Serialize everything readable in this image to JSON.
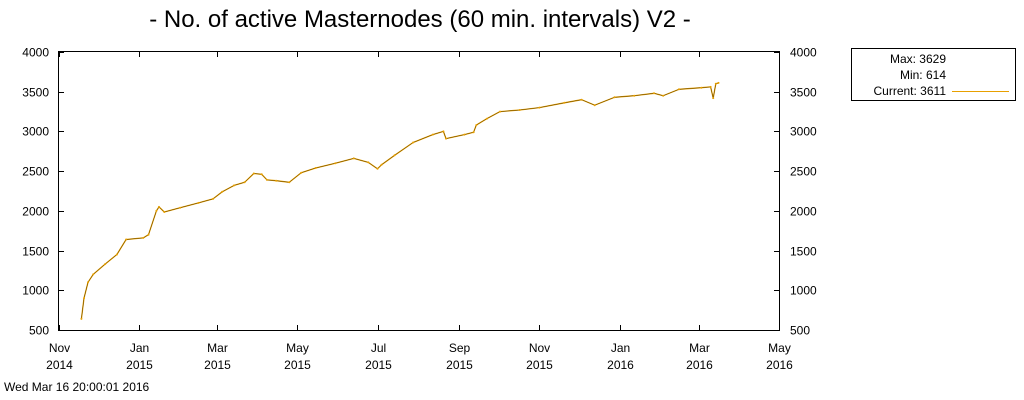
{
  "chart_data": {
    "type": "line",
    "title": "- No. of active Masternodes (60 min. intervals) V2 -",
    "xlabel": "",
    "ylabel": "",
    "ylim": [
      500,
      4000
    ],
    "xlim": [
      "2014-11-01",
      "2016-05-01"
    ],
    "y_ticks": [
      "500",
      "1000",
      "1500",
      "2000",
      "2500",
      "3000",
      "3500",
      "4000"
    ],
    "x_ticks": [
      {
        "date": "2014-11-01",
        "month": "Nov",
        "year": "2014"
      },
      {
        "date": "2015-01-01",
        "month": "Jan",
        "year": "2015"
      },
      {
        "date": "2015-03-01",
        "month": "Mar",
        "year": "2015"
      },
      {
        "date": "2015-05-01",
        "month": "May",
        "year": "2015"
      },
      {
        "date": "2015-07-01",
        "month": "Jul",
        "year": "2015"
      },
      {
        "date": "2015-09-01",
        "month": "Sep",
        "year": "2015"
      },
      {
        "date": "2015-11-01",
        "month": "Nov",
        "year": "2015"
      },
      {
        "date": "2016-01-01",
        "month": "Jan",
        "year": "2016"
      },
      {
        "date": "2016-03-01",
        "month": "Mar",
        "year": "2016"
      },
      {
        "date": "2016-05-01",
        "month": "May",
        "year": "2016"
      }
    ],
    "grid": false,
    "legend_position": "right",
    "series_color": "#e8a000",
    "series": [
      {
        "name": "",
        "points": [
          [
            "2014-11-18",
            640
          ],
          [
            "2014-11-20",
            900
          ],
          [
            "2014-11-23",
            1100
          ],
          [
            "2014-11-27",
            1200
          ],
          [
            "2014-12-06",
            1330
          ],
          [
            "2014-12-15",
            1450
          ],
          [
            "2014-12-22",
            1640
          ],
          [
            "2015-01-04",
            1660
          ],
          [
            "2015-01-08",
            1700
          ],
          [
            "2015-01-14",
            2000
          ],
          [
            "2015-01-16",
            2050
          ],
          [
            "2015-01-20",
            1985
          ],
          [
            "2015-02-01",
            2040
          ],
          [
            "2015-02-15",
            2100
          ],
          [
            "2015-02-26",
            2150
          ],
          [
            "2015-03-05",
            2240
          ],
          [
            "2015-03-14",
            2320
          ],
          [
            "2015-03-22",
            2360
          ],
          [
            "2015-03-29",
            2470
          ],
          [
            "2015-04-04",
            2460
          ],
          [
            "2015-04-08",
            2390
          ],
          [
            "2015-04-15",
            2380
          ],
          [
            "2015-04-25",
            2360
          ],
          [
            "2015-05-04",
            2480
          ],
          [
            "2015-05-15",
            2540
          ],
          [
            "2015-05-30",
            2600
          ],
          [
            "2015-06-13",
            2660
          ],
          [
            "2015-06-24",
            2610
          ],
          [
            "2015-07-01",
            2530
          ],
          [
            "2015-07-04",
            2580
          ],
          [
            "2015-07-14",
            2700
          ],
          [
            "2015-07-28",
            2860
          ],
          [
            "2015-08-12",
            2960
          ],
          [
            "2015-08-20",
            3000
          ],
          [
            "2015-08-22",
            2910
          ],
          [
            "2015-09-05",
            2960
          ],
          [
            "2015-09-12",
            2990
          ],
          [
            "2015-09-14",
            3080
          ],
          [
            "2015-09-22",
            3160
          ],
          [
            "2015-10-02",
            3250
          ],
          [
            "2015-10-17",
            3270
          ],
          [
            "2015-11-01",
            3300
          ],
          [
            "2015-11-20",
            3360
          ],
          [
            "2015-12-03",
            3400
          ],
          [
            "2015-12-13",
            3330
          ],
          [
            "2015-12-28",
            3430
          ],
          [
            "2016-01-12",
            3450
          ],
          [
            "2016-01-27",
            3480
          ],
          [
            "2016-02-03",
            3450
          ],
          [
            "2016-02-15",
            3530
          ],
          [
            "2016-03-03",
            3550
          ],
          [
            "2016-03-10",
            3560
          ],
          [
            "2016-03-12",
            3420
          ],
          [
            "2016-03-14",
            3600
          ],
          [
            "2016-03-16",
            3611
          ]
        ]
      }
    ],
    "legend": {
      "max": "Max: 3629",
      "min": "Min: 614",
      "current": "Current: 3611"
    },
    "footer": "Wed Mar 16 20:00:01 2016"
  }
}
